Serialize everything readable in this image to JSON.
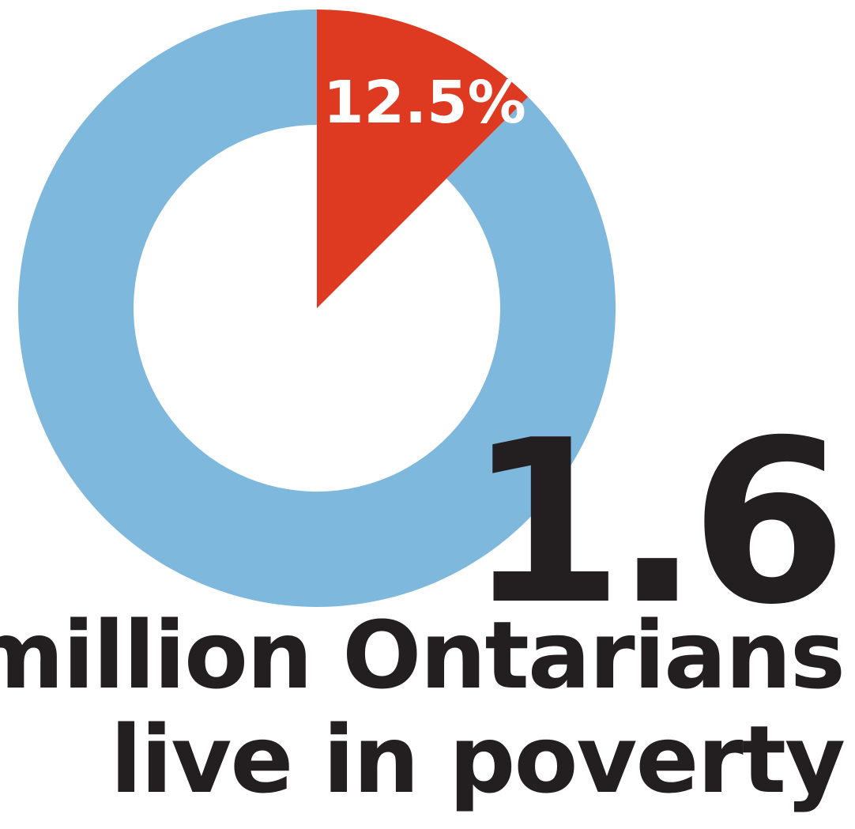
{
  "chart_data": {
    "type": "pie",
    "style": "donut",
    "slices": [
      {
        "label": "12.5%",
        "value": 12.5,
        "color": "#de3a21"
      },
      {
        "label": "",
        "value": 87.5,
        "color": "#7fb8dd"
      }
    ]
  },
  "headline": {
    "number": "1.6",
    "line1": "million Ontarians",
    "line2": "live in poverty"
  },
  "colors": {
    "text": "#231f20",
    "highlight": "#de3a21",
    "remainder": "#7fb8dd"
  }
}
